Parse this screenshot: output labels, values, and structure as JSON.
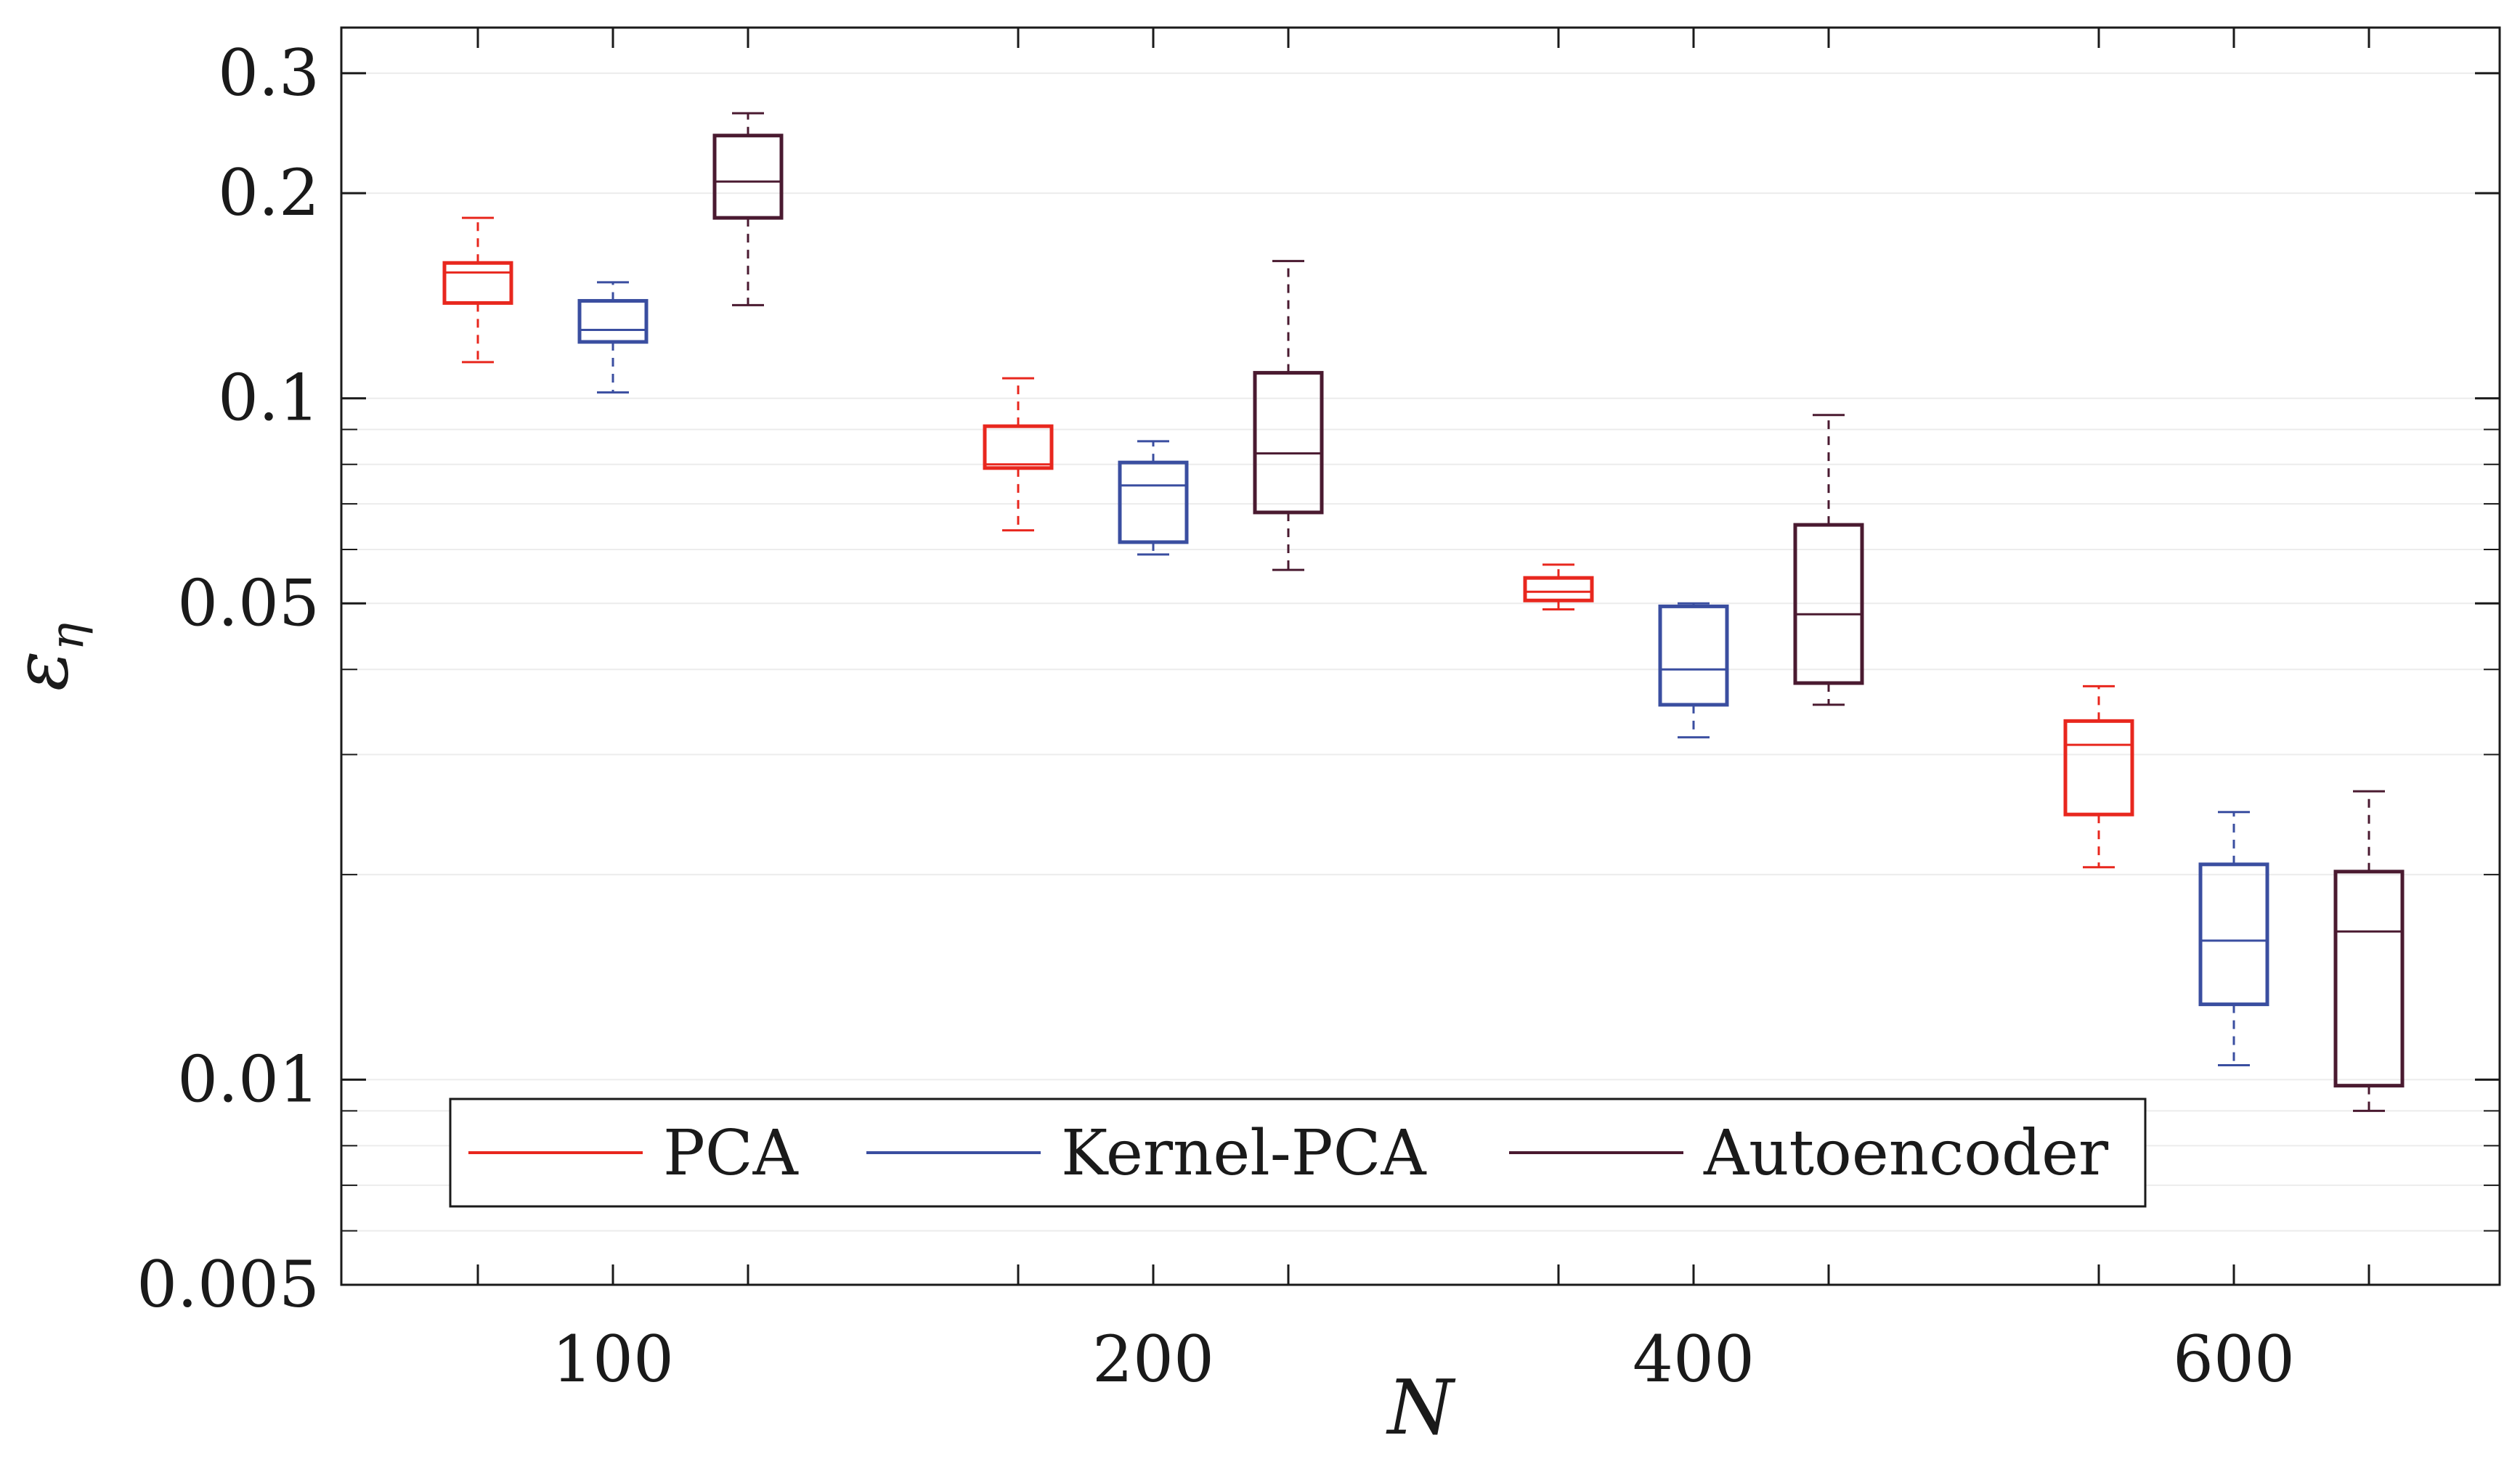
{
  "chart_data": {
    "type": "boxplot",
    "title": "",
    "xlabel": "N",
    "ylabel_main": "ε",
    "ylabel_sub": "η",
    "yscale": "log",
    "ylim": [
      0.005,
      0.35
    ],
    "yticks": [
      {
        "value": 0.005,
        "label": "0.005"
      },
      {
        "value": 0.01,
        "label": "0.01"
      },
      {
        "value": 0.05,
        "label": "0.05"
      },
      {
        "value": 0.1,
        "label": "0.1"
      },
      {
        "value": 0.2,
        "label": "0.2"
      },
      {
        "value": 0.3,
        "label": "0.3"
      }
    ],
    "categories": [
      "100",
      "200",
      "400",
      "600"
    ],
    "grid": true,
    "legend_position": "bottom-left",
    "series": [
      {
        "name": "PCA",
        "color": "#e8271e",
        "boxes": [
          {
            "whisker_low": 0.113,
            "q1": 0.138,
            "median": 0.153,
            "q3": 0.158,
            "whisker_high": 0.184
          },
          {
            "whisker_low": 0.064,
            "q1": 0.079,
            "median": 0.08,
            "q3": 0.091,
            "whisker_high": 0.107
          },
          {
            "whisker_low": 0.049,
            "q1": 0.0505,
            "median": 0.052,
            "q3": 0.0545,
            "whisker_high": 0.057
          },
          {
            "whisker_low": 0.0205,
            "q1": 0.0245,
            "median": 0.031,
            "q3": 0.0336,
            "whisker_high": 0.0378
          }
        ]
      },
      {
        "name": "Kernel-PCA",
        "color": "#3a4ea0",
        "boxes": [
          {
            "whisker_low": 0.102,
            "q1": 0.121,
            "median": 0.126,
            "q3": 0.139,
            "whisker_high": 0.148
          },
          {
            "whisker_low": 0.059,
            "q1": 0.0615,
            "median": 0.0745,
            "q3": 0.0805,
            "whisker_high": 0.0865
          },
          {
            "whisker_low": 0.0318,
            "q1": 0.0355,
            "median": 0.04,
            "q3": 0.0495,
            "whisker_high": 0.05
          },
          {
            "whisker_low": 0.0105,
            "q1": 0.0129,
            "median": 0.016,
            "q3": 0.0207,
            "whisker_high": 0.0247
          }
        ]
      },
      {
        "name": "Autoencoder",
        "color": "#4a1a30",
        "boxes": [
          {
            "whisker_low": 0.137,
            "q1": 0.184,
            "median": 0.208,
            "q3": 0.243,
            "whisker_high": 0.262
          },
          {
            "whisker_low": 0.056,
            "q1": 0.068,
            "median": 0.083,
            "q3": 0.109,
            "whisker_high": 0.159
          },
          {
            "whisker_low": 0.0355,
            "q1": 0.0382,
            "median": 0.0482,
            "q3": 0.0652,
            "whisker_high": 0.0945
          },
          {
            "whisker_low": 0.009,
            "q1": 0.0098,
            "median": 0.0165,
            "q3": 0.0202,
            "whisker_high": 0.0265
          }
        ]
      }
    ]
  }
}
